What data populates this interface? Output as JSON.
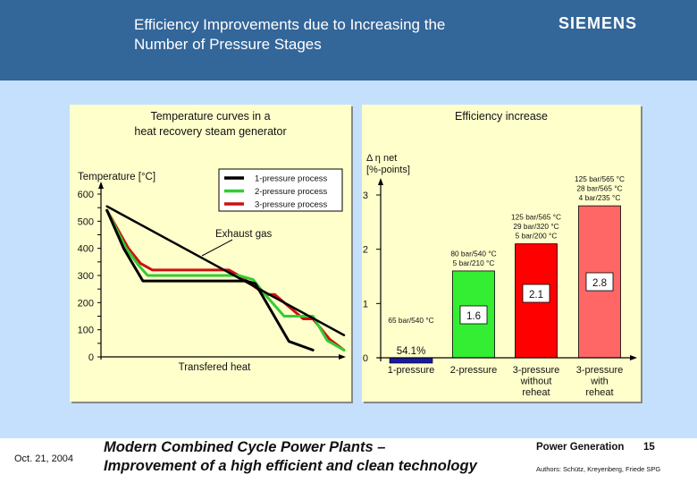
{
  "header": {
    "title_line1": "Efficiency Improvements due to Increasing the",
    "title_line2": "Number of Pressure Stages",
    "logo": "SIEMENS",
    "background": "#336699"
  },
  "footer": {
    "date": "Oct. 21, 2004",
    "subtitle_line1": "Modern Combined Cycle Power Plants –",
    "subtitle_line2": "Improvement of a high efficient and clean technology",
    "division": "Power Generation",
    "page": "15",
    "authors": "Authors: Schütz, Kreyenberg, Friede SPG"
  },
  "chart_data": [
    {
      "type": "line",
      "title": "Temperature curves in a heat recovery steam generator",
      "title_line1": "Temperature curves in a",
      "title_line2": "heat recovery steam generator",
      "ylabel": "Temperature [°C]",
      "xlabel": "Transfered heat",
      "ylim": [
        0,
        600
      ],
      "xlim": [
        0,
        100
      ],
      "yticks": [
        0,
        100,
        200,
        300,
        400,
        500,
        600
      ],
      "ytick_labels": [
        "0",
        "100",
        "200",
        "300",
        "400",
        "500",
        "600"
      ],
      "annotation": "Exhaust gas",
      "legend_position": "top-right",
      "series": [
        {
          "name": "Exhaust gas",
          "color": "#000000",
          "legend": false,
          "points": [
            [
              1,
              555
            ],
            [
              100,
              80
            ]
          ]
        },
        {
          "name": "1-pressure process",
          "color": "#000000",
          "legend": true,
          "points": [
            [
              1,
              540
            ],
            [
              8,
              400
            ],
            [
              16,
              280
            ],
            [
              59,
              280
            ],
            [
              63,
              270
            ],
            [
              77,
              57
            ],
            [
              87,
              25
            ]
          ]
        },
        {
          "name": "2-pressure process",
          "color": "#33cc33",
          "legend": true,
          "points": [
            [
              1,
              540
            ],
            [
              9,
              400
            ],
            [
              14,
              340
            ],
            [
              18,
              300
            ],
            [
              56,
              300
            ],
            [
              62,
              285
            ],
            [
              67,
              230
            ],
            [
              75,
              150
            ],
            [
              87,
              150
            ],
            [
              93,
              60
            ],
            [
              100,
              25
            ]
          ]
        },
        {
          "name": "3-pressure process",
          "color": "#cc1111",
          "legend": true,
          "points": [
            [
              1,
              540
            ],
            [
              10,
              400
            ],
            [
              15,
              345
            ],
            [
              20,
              320
            ],
            [
              52,
              320
            ],
            [
              57,
              295
            ],
            [
              67,
              230
            ],
            [
              71,
              230
            ],
            [
              83,
              140
            ],
            [
              87,
              140
            ],
            [
              94,
              65
            ],
            [
              100,
              25
            ]
          ]
        }
      ]
    },
    {
      "type": "bar",
      "title": "Efficiency increase",
      "ylabel_line1": "Δ η  net",
      "ylabel_line2": "[%-points]",
      "ylim": [
        0,
        3
      ],
      "yticks": [
        0,
        1,
        2,
        3
      ],
      "ytick_labels": [
        "0",
        "1",
        "2",
        "3"
      ],
      "categories": [
        "1-pressure",
        "2-pressure",
        "3-pressure without reheat",
        "3-pressure with reheat"
      ],
      "category_lines": [
        [
          "1-pressure"
        ],
        [
          "2-pressure"
        ],
        [
          "3-pressure",
          "without",
          "reheat"
        ],
        [
          "3-pressure",
          "with",
          "reheat"
        ]
      ],
      "values": [
        0,
        1.6,
        2.1,
        2.8
      ],
      "value_labels": [
        "",
        "1.6",
        "2.1",
        "2.8"
      ],
      "colors": [
        "#1a1aa6",
        "#33ee33",
        "#ff0000",
        "#ff6666"
      ],
      "baseline_note": "54.1%",
      "annotations": [
        [
          "65 bar/540 °C"
        ],
        [
          "80 bar/540 °C",
          "5 bar/210 °C"
        ],
        [
          "125 bar/565 °C",
          "29 bar/320 °C",
          "5 bar/200 °C"
        ],
        [
          "125 bar/565 °C",
          "28 bar/565 °C",
          "4 bar/235 °C"
        ]
      ]
    }
  ]
}
